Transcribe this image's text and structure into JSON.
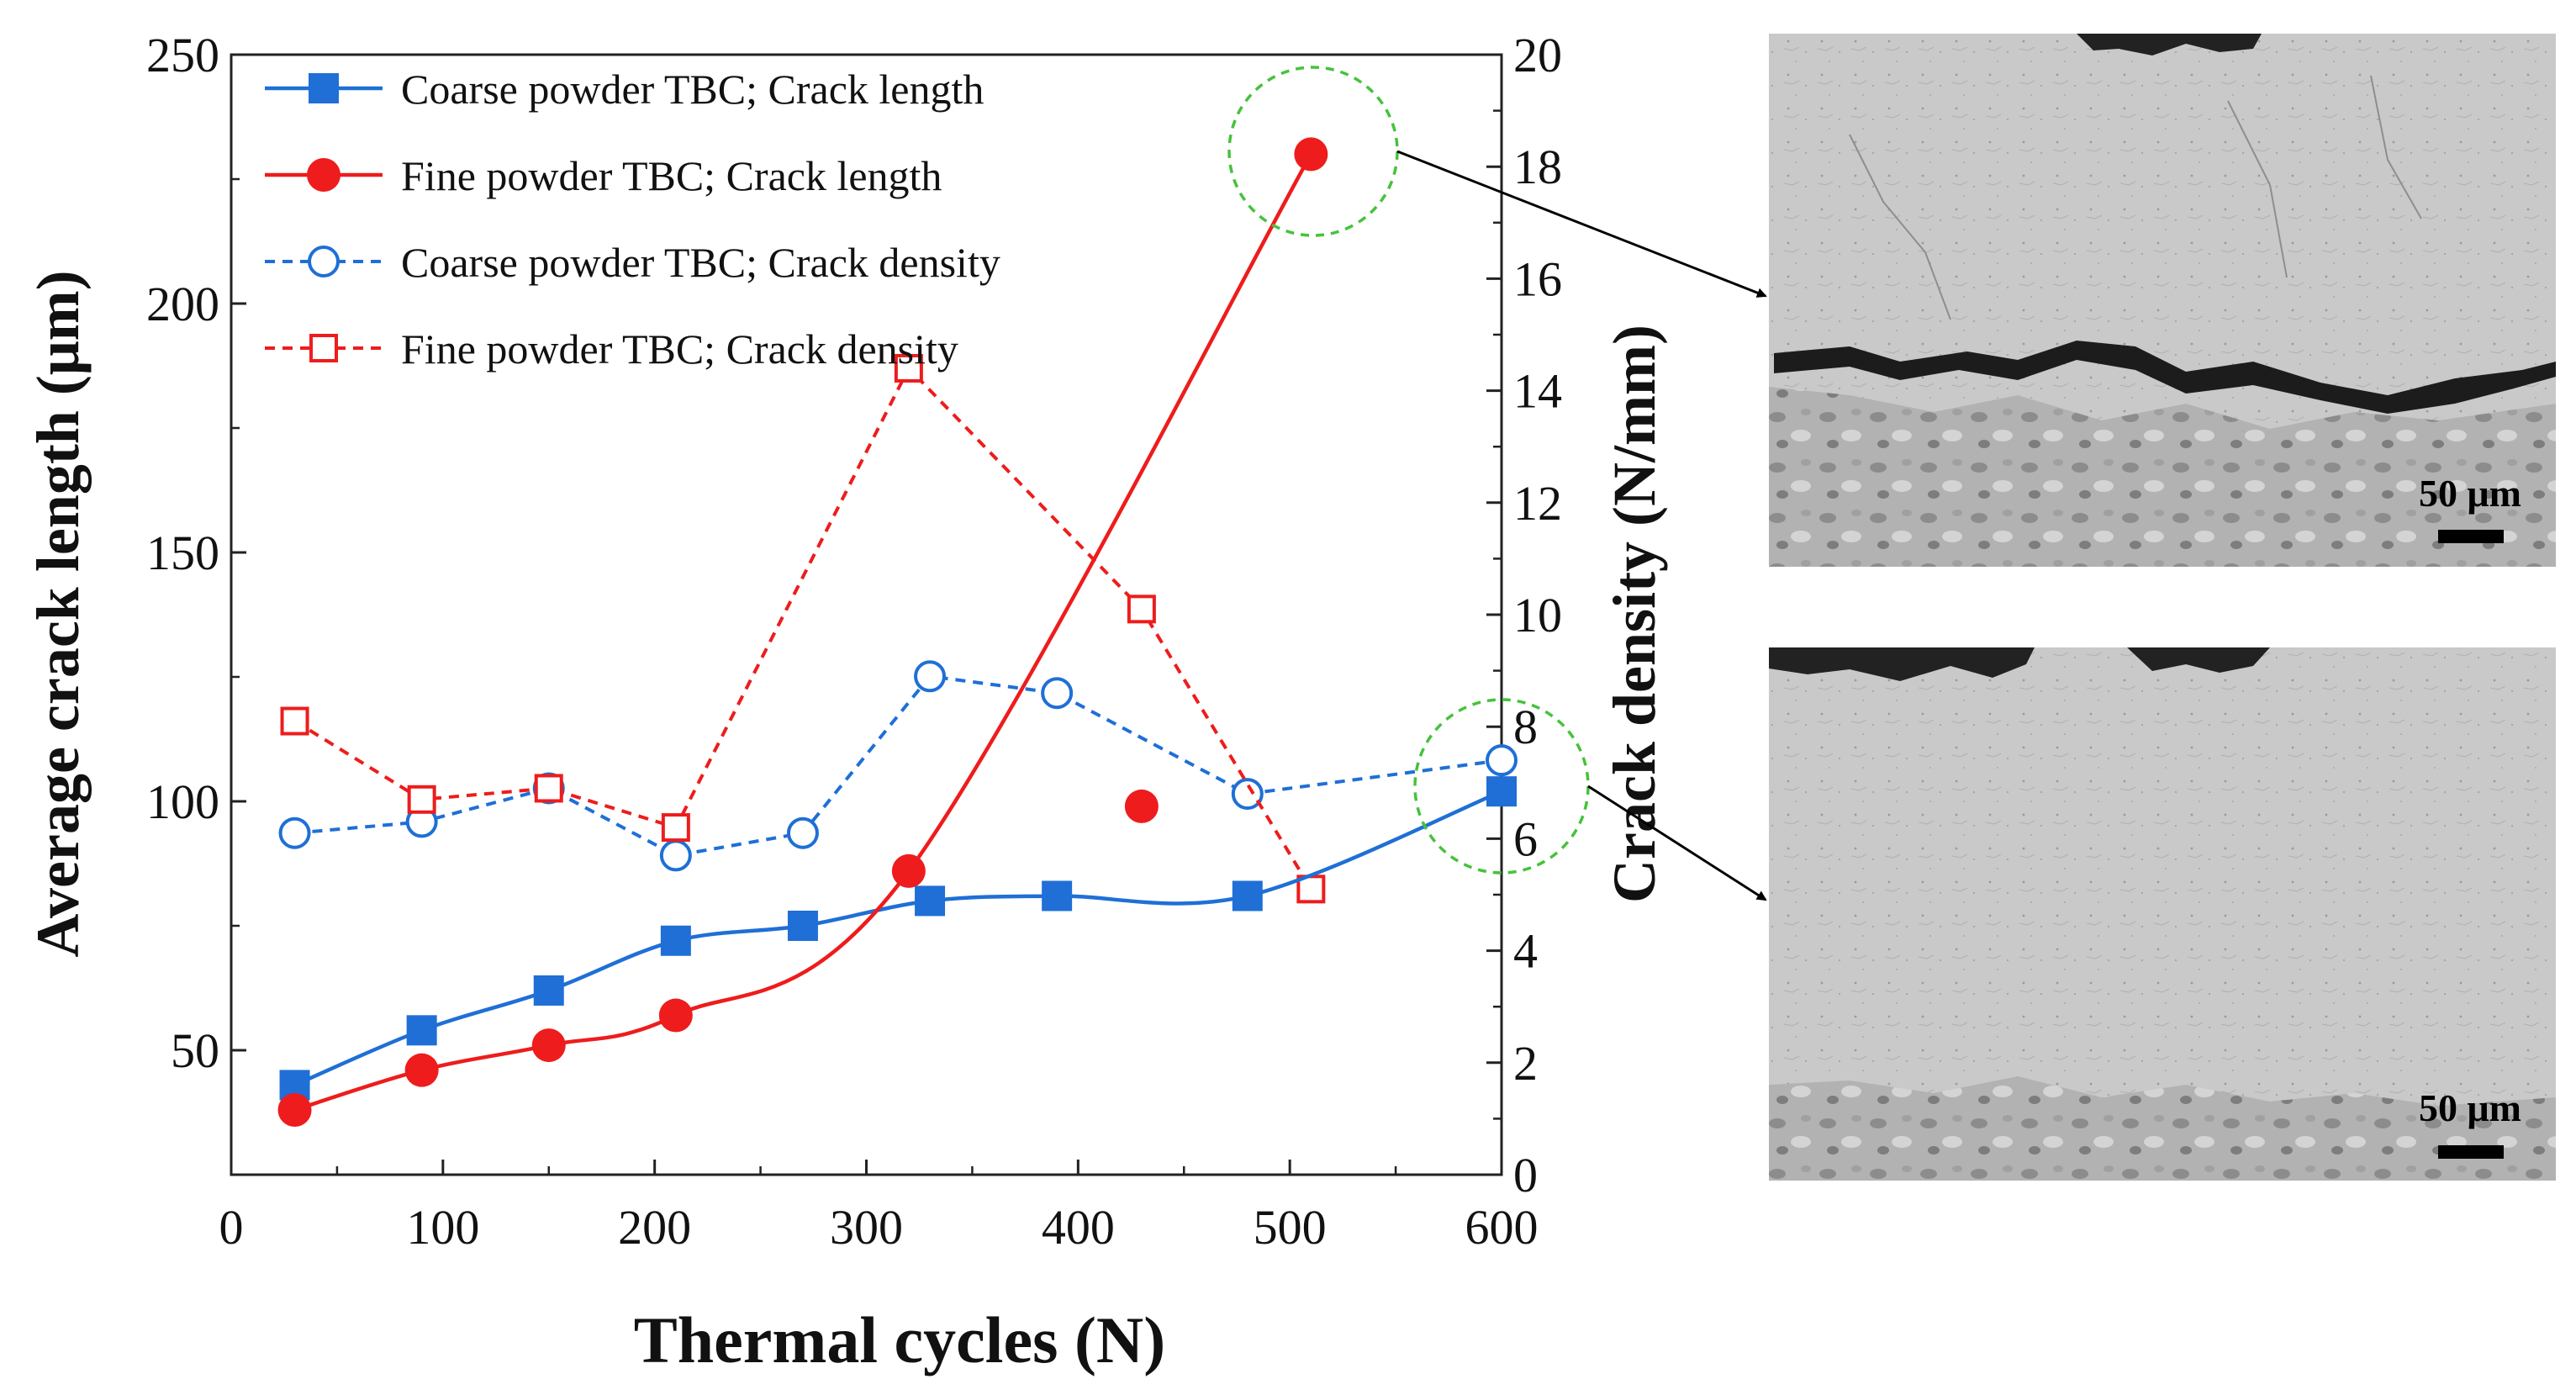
{
  "chart_data": {
    "type": "line",
    "xlabel": "Thermal cycles (N)",
    "ylabel_left": "Average crack length (μm)",
    "ylabel_right": "Crack density (N/mm)",
    "xlim": [
      0,
      600
    ],
    "ylim_left": [
      25,
      250
    ],
    "ylim_right": [
      0,
      20
    ],
    "x_ticks": [
      0,
      100,
      200,
      300,
      400,
      500,
      600
    ],
    "y_left_ticks": [
      50,
      100,
      150,
      200,
      250
    ],
    "y_right_ticks": [
      0,
      2,
      4,
      6,
      8,
      10,
      12,
      14,
      16,
      18,
      20
    ],
    "series": [
      {
        "name": "Coarse powder TBC; Crack length",
        "axis": "left",
        "marker": "filled-square",
        "line": "solid",
        "color": "#1f6fd6",
        "x": [
          30,
          90,
          150,
          210,
          270,
          330,
          390,
          480,
          600
        ],
        "values": [
          43,
          54,
          62,
          72,
          75,
          80,
          81,
          81,
          102
        ]
      },
      {
        "name": "Fine powder TBC; Crack length",
        "axis": "left",
        "marker": "filled-circle",
        "line": "solid",
        "color": "#ee1c1c",
        "x": [
          30,
          90,
          150,
          210,
          320,
          430,
          510
        ],
        "values": [
          38,
          46,
          51,
          57,
          86,
          99,
          230
        ]
      },
      {
        "name": "Coarse powder TBC; Crack density",
        "axis": "right",
        "marker": "open-circle",
        "line": "dashed",
        "color": "#1f6fd6",
        "x": [
          30,
          90,
          150,
          210,
          270,
          330,
          390,
          480,
          600
        ],
        "values": [
          6.1,
          6.3,
          6.9,
          5.7,
          6.1,
          8.9,
          8.6,
          6.8,
          7.4
        ]
      },
      {
        "name": "Fine powder TBC; Crack density",
        "axis": "right",
        "marker": "open-square",
        "line": "dashed",
        "color": "#ee1c1c",
        "x": [
          30,
          90,
          150,
          210,
          320,
          430,
          510
        ],
        "values": [
          8.1,
          6.7,
          6.9,
          6.2,
          14.4,
          10.1,
          5.1
        ]
      }
    ],
    "annotations": [
      {
        "type": "highlight-circle",
        "color": "#46c23c",
        "target": "Fine powder TBC; Crack length @ 510"
      },
      {
        "type": "highlight-circle",
        "color": "#46c23c",
        "target": "Coarse powder TBC @ 600"
      }
    ]
  },
  "micrographs": [
    {
      "scale_label": "50 μm",
      "description_icon": "micrograph-cracked"
    },
    {
      "scale_label": "50 μm",
      "description_icon": "micrograph-intact"
    }
  ],
  "colors": {
    "blue": "#1f6fd6",
    "red": "#ee1c1c",
    "green": "#46c23c"
  }
}
